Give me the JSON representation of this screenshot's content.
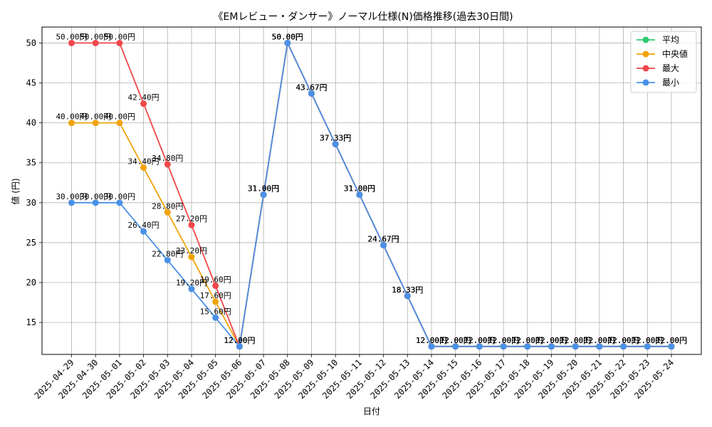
{
  "chart_data": {
    "type": "line",
    "title": "《EMレビュー・ダンサー》ノーマル仕様(N)価格推移(過去30日間)",
    "xlabel": "日付",
    "ylabel": "値 (円)",
    "ylim": [
      11.0,
      52.0
    ],
    "yticks": [
      15,
      20,
      25,
      30,
      35,
      40,
      45,
      50
    ],
    "grid": true,
    "legend_position": "top-right",
    "value_suffix": "円",
    "categories": [
      "2025-04-29",
      "2025-04-30",
      "2025-05-01",
      "2025-05-02",
      "2025-05-03",
      "2025-05-04",
      "2025-05-05",
      "2025-05-06",
      "2025-05-07",
      "2025-05-08",
      "2025-05-09",
      "2025-05-10",
      "2025-05-11",
      "2025-05-12",
      "2025-05-13",
      "2025-05-14",
      "2025-05-15",
      "2025-05-16",
      "2025-05-17",
      "2025-05-18",
      "2025-05-19",
      "2025-05-20",
      "2025-05-21",
      "2025-05-22",
      "2025-05-23",
      "2025-05-24"
    ],
    "series": [
      {
        "name": "平均",
        "color": "#2ecc71",
        "values": [
          null,
          null,
          null,
          null,
          null,
          null,
          null,
          12.0,
          31.0,
          50.0,
          43.67,
          37.33,
          31.0,
          24.67,
          18.33,
          12.0,
          12.0,
          12.0,
          12.0,
          12.0,
          12.0,
          12.0,
          12.0,
          12.0,
          12.0,
          12.0
        ]
      },
      {
        "name": "中央値",
        "color": "#f0a30a",
        "values": [
          40.0,
          40.0,
          40.0,
          34.4,
          28.8,
          23.2,
          17.6,
          12.0,
          31.0,
          50.0,
          43.67,
          37.33,
          31.0,
          24.67,
          18.33,
          12.0,
          12.0,
          12.0,
          12.0,
          12.0,
          12.0,
          12.0,
          12.0,
          12.0,
          12.0,
          12.0
        ]
      },
      {
        "name": "最大",
        "color": "#f0474a",
        "values": [
          50.0,
          50.0,
          50.0,
          42.4,
          34.8,
          27.2,
          19.6,
          12.0,
          31.0,
          50.0,
          43.67,
          37.33,
          31.0,
          24.67,
          18.33,
          12.0,
          12.0,
          12.0,
          12.0,
          12.0,
          12.0,
          12.0,
          12.0,
          12.0,
          12.0,
          12.0
        ]
      },
      {
        "name": "最小",
        "color": "#4a90e8",
        "values": [
          30.0,
          30.0,
          30.0,
          26.4,
          22.8,
          19.2,
          15.6,
          12.0,
          31.0,
          50.0,
          43.67,
          37.33,
          31.0,
          24.67,
          18.33,
          12.0,
          12.0,
          12.0,
          12.0,
          12.0,
          12.0,
          12.0,
          12.0,
          12.0,
          12.0,
          12.0
        ]
      }
    ]
  }
}
